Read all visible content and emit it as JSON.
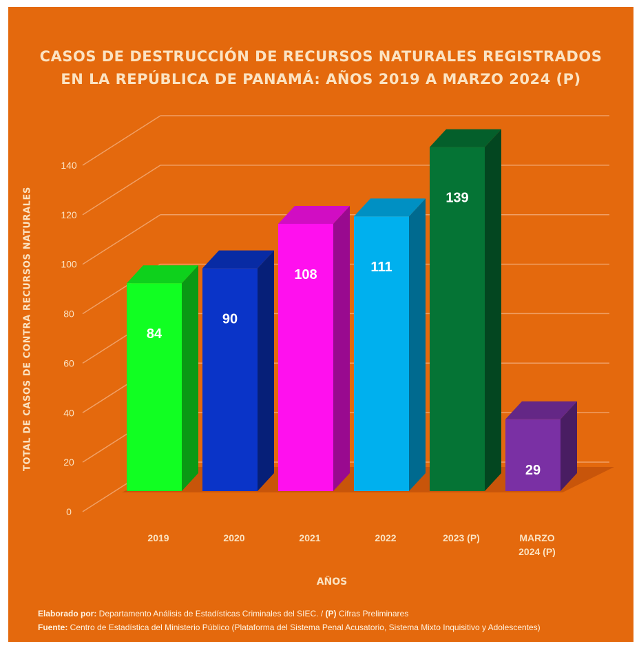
{
  "title_line1": "CASOS DE DESTRUCCIÓN DE RECURSOS NATURALES REGISTRADOS",
  "title_line2": "EN LA REPÚBLICA DE PANAMÁ: AÑOS 2019 A MARZO 2024 (P)",
  "footer": {
    "made_by_label": "Elaborado por:",
    "made_by_text": " Departamento Análisis de Estadísticas Criminales del SIEC.  /  ",
    "prelim_label": "(P)",
    "prelim_text": " Cifras Preliminares",
    "source_label": "Fuente:",
    "source_text": " Centro de Estadística del Ministerio Público (Plataforma del Sistema Penal Acusatorio, Sistema Mixto Inquisitivo y Adolescentes)"
  },
  "colors": {
    "background": "#e4690d",
    "text": "#fbe3c2"
  },
  "chart_data": {
    "type": "bar",
    "title": "CASOS DE DESTRUCCIÓN DE RECURSOS NATURALES REGISTRADOS EN LA REPÚBLICA DE PANAMÁ: AÑOS 2019 A MARZO 2024 (P)",
    "xlabel": "AÑOS",
    "ylabel": "TOTAL DE CASOS DE CONTRA RECURSOS NATURALES",
    "categories": [
      "2019",
      "2020",
      "2021",
      "2022",
      "2023 (P)",
      "MARZO 2024 (P)"
    ],
    "category_lines": [
      [
        "2019"
      ],
      [
        "2020"
      ],
      [
        "2021"
      ],
      [
        "2022"
      ],
      [
        "2023 (P)"
      ],
      [
        "MARZO",
        "2024 (P)"
      ]
    ],
    "values": [
      84,
      90,
      108,
      111,
      139,
      29
    ],
    "data_labels": [
      "84",
      "90",
      "108",
      "111",
      "139",
      "29"
    ],
    "bar_colors": [
      "#11ff22",
      "#0a34c8",
      "#ff10ee",
      "#00b0ee",
      "#057435",
      "#7a30a4"
    ],
    "ylim": [
      0,
      140
    ],
    "yticks": [
      0,
      20,
      40,
      60,
      80,
      100,
      120,
      140
    ],
    "grid": true,
    "style": "3d-bar"
  }
}
